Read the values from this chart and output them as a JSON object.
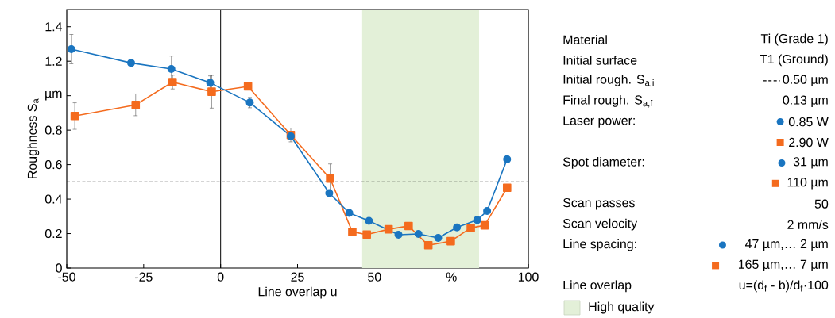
{
  "chart_data": {
    "type": "line",
    "xlabel": "Line overlap u",
    "ylabel": "Roughness S$_{a}$",
    "xlim": [
      -50,
      100
    ],
    "ylim": [
      0,
      1.5
    ],
    "xticks": [
      -50,
      -25,
      0,
      25,
      50,
      {
        "value": 75,
        "label": "%"
      },
      100
    ],
    "yticks": [
      0,
      0.2,
      0.4,
      0.6,
      0.8,
      {
        "value": 1.0,
        "label": "µm"
      },
      1.2,
      1.4
    ],
    "series": [
      {
        "name": "0.85 W",
        "color": "#1a75c0",
        "marker": "circle",
        "x": [
          -48.5,
          -29.1,
          -16.0,
          -3.4,
          9.5,
          22.8,
          35.3,
          41.8,
          48.2,
          57.8,
          64.3,
          70.7,
          76.8,
          83.4,
          86.6,
          93.1
        ],
        "values": [
          1.27,
          1.19,
          1.155,
          1.075,
          0.96,
          0.765,
          0.435,
          0.32,
          0.274,
          0.193,
          0.198,
          0.175,
          0.236,
          0.279,
          0.331,
          0.631
        ],
        "errors": [
          0.085,
          null,
          0.075,
          0.04,
          0.03,
          null,
          null,
          null,
          null,
          null,
          null,
          null,
          null,
          null,
          null,
          null
        ]
      },
      {
        "name": "2.90 W",
        "color": "#f46b1e",
        "marker": "square",
        "x": [
          -47.4,
          -27.6,
          -15.6,
          -2.9,
          8.9,
          22.8,
          35.6,
          42.8,
          47.5,
          54.6,
          61.1,
          67.5,
          74.8,
          81.3,
          85.8,
          93.1
        ],
        "values": [
          0.882,
          0.947,
          1.079,
          1.023,
          1.054,
          0.772,
          0.519,
          0.21,
          0.194,
          0.225,
          0.244,
          0.132,
          0.156,
          0.233,
          0.248,
          0.466
        ],
        "errors": [
          0.077,
          0.063,
          0.04,
          0.095,
          null,
          0.04,
          0.085,
          null,
          null,
          null,
          null,
          null,
          null,
          null,
          null,
          null
        ]
      }
    ],
    "ref_lines": [
      {
        "axis": "y",
        "value": 0.5,
        "label": "0.50 µm",
        "line_style": "dashed",
        "color": "#000000"
      },
      {
        "axis": "x",
        "value": 0,
        "line_style": "solid",
        "color": "#000000"
      }
    ],
    "bands": [
      {
        "axis": "x",
        "from": 46,
        "to": 84,
        "label": "High quality",
        "color": "#e3f0d8"
      }
    ],
    "legend": "right",
    "annotations": [
      "Material",
      "Ti (Grade 1)",
      "Initial surface",
      "T1 (Ground)",
      "Initial rough. S$_{a,i}$",
      "Final rough. S$_{a,f}$",
      "0.13 µm",
      "Laser power:",
      "Spot diameter:",
      "31 µm",
      "110 µm",
      "Scan passes",
      "50",
      "Scan velocity",
      "2 mm/s",
      "Line spacing:",
      "47 µm,… 2 µm",
      "165 µm,… 7 µm",
      "Line overlap",
      "u=(d$_{f}$ - b)/d$_{f}$·100"
    ]
  }
}
